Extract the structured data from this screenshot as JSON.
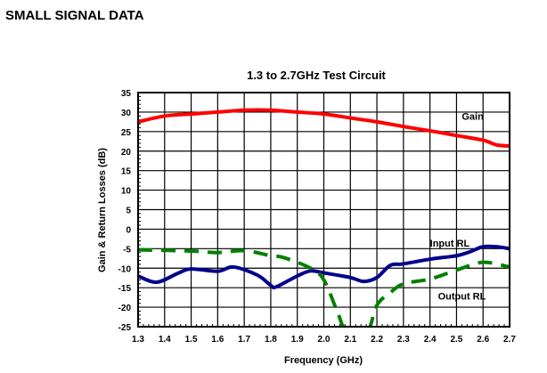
{
  "section_title": "SMALL SIGNAL DATA",
  "chart_data": {
    "type": "line",
    "title": "1.3 to 2.7GHz Test Circuit",
    "xlabel": "Frequency (GHz)",
    "ylabel": "Gain & Return Losses (dB)",
    "xlim": [
      1.3,
      2.7
    ],
    "ylim": [
      -25,
      35
    ],
    "xticks": [
      "1.3",
      "1.4",
      "1.5",
      "1.6",
      "1.7",
      "1.8",
      "1.9",
      "2.0",
      "2.1",
      "2.2",
      "2.3",
      "2.4",
      "2.5",
      "2.6",
      "2.7"
    ],
    "yticks": [
      "35",
      "30",
      "25",
      "20",
      "15",
      "10",
      "5",
      "0",
      "-5",
      "-10",
      "-15",
      "-20",
      "-25"
    ],
    "grid": true,
    "series": [
      {
        "name": "Gain",
        "color": "#ff0000",
        "style": "solid",
        "label_at": [
          2.52,
          28
        ],
        "x": [
          1.3,
          1.4,
          1.5,
          1.6,
          1.7,
          1.8,
          1.9,
          2.0,
          2.1,
          2.2,
          2.3,
          2.4,
          2.5,
          2.6,
          2.65,
          2.7
        ],
        "y": [
          27.5,
          29,
          29.5,
          30,
          30.5,
          30.5,
          30,
          29.5,
          28.5,
          27.5,
          26.3,
          25.2,
          24,
          22.8,
          21.6,
          21.3
        ]
      },
      {
        "name": "Input RL",
        "color": "#00008b",
        "style": "solid",
        "label_at": [
          2.4,
          -4.5
        ],
        "x": [
          1.3,
          1.37,
          1.45,
          1.5,
          1.6,
          1.66,
          1.75,
          1.8,
          1.82,
          1.9,
          1.95,
          2.0,
          2.1,
          2.15,
          2.2,
          2.25,
          2.3,
          2.4,
          2.5,
          2.55,
          2.6,
          2.65,
          2.7
        ],
        "y": [
          -12,
          -13.6,
          -11.3,
          -10.2,
          -10.8,
          -9.7,
          -11.8,
          -14.4,
          -14.8,
          -12,
          -10.7,
          -11.2,
          -12.4,
          -13.4,
          -12.4,
          -9.3,
          -8.9,
          -7.7,
          -6.8,
          -5.8,
          -4.5,
          -4.5,
          -5
        ]
      },
      {
        "name": "Output RL",
        "color": "#008000",
        "style": "dashed",
        "label_at": [
          2.43,
          -18
        ],
        "x": [
          1.3,
          1.5,
          1.6,
          1.7,
          1.8,
          1.85,
          1.95,
          2.0,
          2.05,
          2.09,
          2.16,
          2.2,
          2.25,
          2.3,
          2.4,
          2.5,
          2.6,
          2.7
        ],
        "y": [
          -5.3,
          -5.6,
          -6,
          -5.5,
          -6.8,
          -7.3,
          -10,
          -13,
          -21,
          -27,
          -27,
          -19.5,
          -16.3,
          -14,
          -12.8,
          -10.5,
          -8.5,
          -9.7
        ]
      }
    ]
  }
}
